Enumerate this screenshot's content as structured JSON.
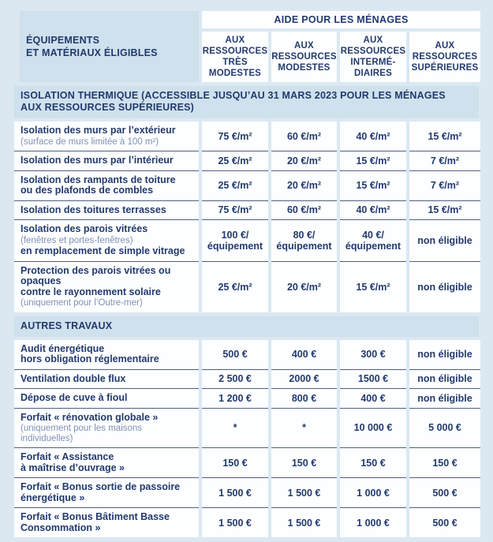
{
  "colors": {
    "page_bg": "#dbe8f2",
    "band_bg": "#cfe1ed",
    "cell_bg": "#fdfeff",
    "text_navy": "#223a6d",
    "text_muted": "#8191b3",
    "row_divider": "#51607f"
  },
  "table": {
    "corner_header": "ÉQUIPEMENTS\nET MATÉRIAUX ÉLIGIBLES",
    "group_header": "AIDE POUR LES MÉNAGES",
    "columns": [
      "AUX\nRESSOURCES\nTRÈS\nMODESTES",
      "AUX\nRESSOURCES\nMODESTES",
      "AUX\nRESSOURCES\nINTERMÉ-\nDIAIRES",
      "AUX\nRESSOURCES\nSUPÉRIEURES"
    ],
    "sections": [
      {
        "title": "ISOLATION THERMIQUE (ACCESSIBLE JUSQU’AU 31 MARS 2023 POUR LES MÉNAGES\nAUX RESSOURCES SUPÉRIEURES)",
        "rows": [
          {
            "label_parts": [
              {
                "text": "Isolation des murs par l’extérieur",
                "muted": false
              },
              {
                "text": "(surface de murs limitée à 100 m²)",
                "muted": true
              }
            ],
            "values": [
              "75 €/m²",
              "60 €/m²",
              "40 €/m²",
              "15 €/m²"
            ]
          },
          {
            "label_parts": [
              {
                "text": "Isolation des murs par l’intérieur",
                "muted": false
              }
            ],
            "values": [
              "25 €/m²",
              "20 €/m²",
              "15 €/m²",
              "7 €/m²"
            ]
          },
          {
            "label_parts": [
              {
                "text": "Isolation des rampants de toiture\nou des plafonds de combles",
                "muted": false
              }
            ],
            "values": [
              "25 €/m²",
              "20 €/m²",
              "15 €/m²",
              "7 €/m²"
            ]
          },
          {
            "label_parts": [
              {
                "text": "Isolation des toitures terrasses",
                "muted": false
              }
            ],
            "values": [
              "75 €/m²",
              "60 €/m²",
              "40 €/m²",
              "15 €/m²"
            ]
          },
          {
            "label_parts": [
              {
                "text": "Isolation des parois vitrées",
                "muted": false
              },
              {
                "text": "(fenêtres et portes-fenêtres)",
                "muted": true
              },
              {
                "text": "en remplacement de simple vitrage",
                "muted": false
              }
            ],
            "values": [
              "100 €/\néquipement",
              "80 €/\néquipement",
              "40 €/\néquipement",
              "non éligible"
            ]
          },
          {
            "label_parts": [
              {
                "text": "Protection des parois vitrées ou opaques\ncontre le rayonnement solaire",
                "muted": false
              },
              {
                "text": "(uniquement pour l’Outre-mer)",
                "muted": true
              }
            ],
            "values": [
              "25 €/m²",
              "20 €/m²",
              "15 €/m²",
              "non éligible"
            ]
          }
        ]
      },
      {
        "title": "AUTRES TRAVAUX",
        "rows": [
          {
            "label_parts": [
              {
                "text": "Audit énergétique\nhors obligation réglementaire",
                "muted": false
              }
            ],
            "values": [
              "500 €",
              "400 €",
              "300 €",
              "non éligible"
            ]
          },
          {
            "label_parts": [
              {
                "text": "Ventilation double flux",
                "muted": false
              }
            ],
            "values": [
              "2 500 €",
              "2000 €",
              "1500 €",
              "non éligible"
            ]
          },
          {
            "label_parts": [
              {
                "text": "Dépose de cuve à fioul",
                "muted": false
              }
            ],
            "values": [
              "1 200 €",
              "800 €",
              "400 €",
              "non éligible"
            ]
          },
          {
            "label_parts": [
              {
                "text": "Forfait « rénovation globale »",
                "muted": false
              },
              {
                "text": "(uniquement pour les maisons\nindividuelles)",
                "muted": true
              }
            ],
            "values": [
              "*",
              "*",
              "10 000 €",
              "5 000 €"
            ]
          },
          {
            "label_parts": [
              {
                "text": "Forfait « Assistance\nà maîtrise d’ouvrage »",
                "muted": false
              }
            ],
            "values": [
              "150 €",
              "150 €",
              "150 €",
              "150 €"
            ]
          },
          {
            "label_parts": [
              {
                "text": "Forfait « Bonus sortie de passoire\nénergétique »",
                "muted": false
              }
            ],
            "values": [
              "1 500 €",
              "1 500 €",
              "1 000 €",
              "500 €"
            ]
          },
          {
            "label_parts": [
              {
                "text": "Forfait « Bonus Bâtiment Basse\nConsommation »",
                "muted": false
              }
            ],
            "values": [
              "1 500 €",
              "1 500 €",
              "1 000 €",
              "500 €"
            ]
          }
        ]
      }
    ]
  }
}
